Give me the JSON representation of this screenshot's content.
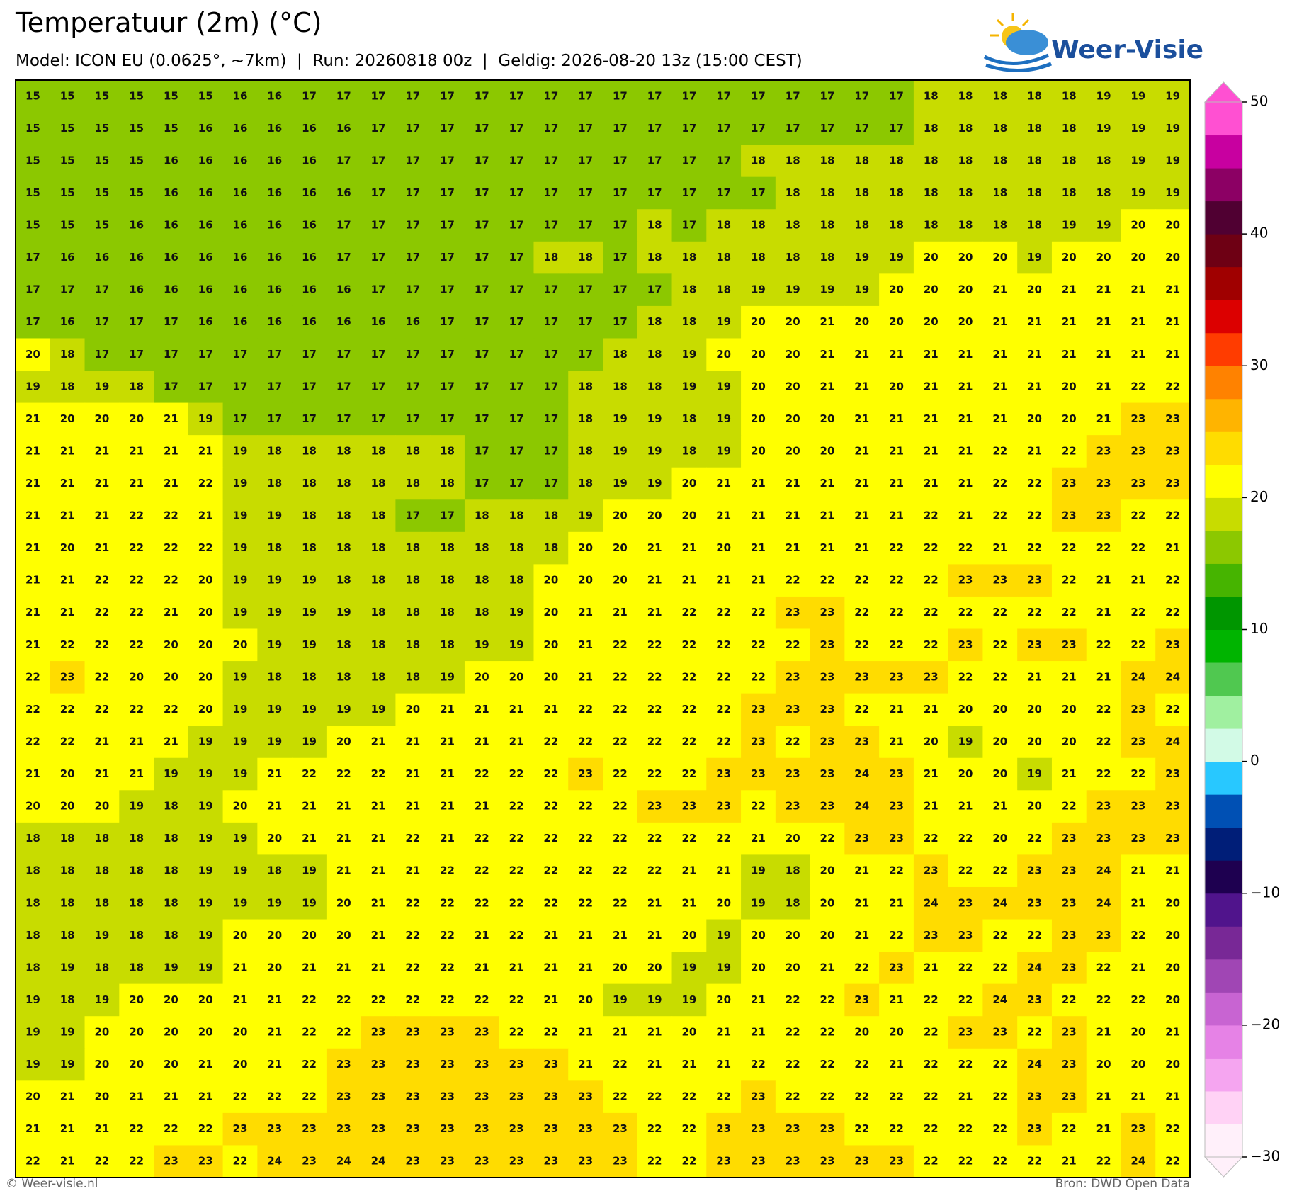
{
  "header": {
    "title": "Temperatuur (2m) (°C)",
    "subtitle": "Model: ICON EU (0.0625°, ~7km)  |  Run: 20260818 00z  |  Geldig: 2026-08-20 13z (15:00 CEST)",
    "logo": "Weer-Visie"
  },
  "map": {
    "values": [
      [
        15,
        15,
        15,
        15,
        15,
        15,
        16,
        16,
        17,
        17,
        17,
        17,
        17,
        17,
        17,
        17,
        17,
        17,
        17,
        17,
        17,
        17,
        17,
        17,
        17,
        17,
        18,
        18,
        18,
        18,
        18,
        19,
        19,
        19
      ],
      [
        15,
        15,
        15,
        15,
        15,
        16,
        16,
        16,
        16,
        16,
        17,
        17,
        17,
        17,
        17,
        17,
        17,
        17,
        17,
        17,
        17,
        17,
        17,
        17,
        17,
        17,
        18,
        18,
        18,
        18,
        18,
        19,
        19,
        19
      ],
      [
        15,
        15,
        15,
        15,
        16,
        16,
        16,
        16,
        16,
        17,
        17,
        17,
        17,
        17,
        17,
        17,
        17,
        17,
        17,
        17,
        17,
        18,
        18,
        18,
        18,
        18,
        18,
        18,
        18,
        18,
        18,
        18,
        19,
        19
      ],
      [
        15,
        15,
        15,
        15,
        16,
        16,
        16,
        16,
        16,
        16,
        17,
        17,
        17,
        17,
        17,
        17,
        17,
        17,
        17,
        17,
        17,
        17,
        18,
        18,
        18,
        18,
        18,
        18,
        18,
        18,
        18,
        18,
        19,
        19
      ],
      [
        15,
        15,
        15,
        16,
        16,
        16,
        16,
        16,
        16,
        17,
        17,
        17,
        17,
        17,
        17,
        17,
        17,
        17,
        18,
        17,
        18,
        18,
        18,
        18,
        18,
        18,
        18,
        18,
        18,
        18,
        19,
        19,
        20,
        20
      ],
      [
        17,
        16,
        16,
        16,
        16,
        16,
        16,
        16,
        16,
        17,
        17,
        17,
        17,
        17,
        17,
        18,
        18,
        17,
        18,
        18,
        18,
        18,
        18,
        18,
        19,
        19,
        20,
        20,
        20,
        19,
        20,
        20,
        20,
        20
      ],
      [
        17,
        17,
        17,
        16,
        16,
        16,
        16,
        16,
        16,
        16,
        17,
        17,
        17,
        17,
        17,
        17,
        17,
        17,
        17,
        18,
        18,
        19,
        19,
        19,
        19,
        20,
        20,
        20,
        21,
        20,
        21,
        21,
        21,
        21
      ],
      [
        17,
        16,
        17,
        17,
        17,
        16,
        16,
        16,
        16,
        16,
        16,
        16,
        17,
        17,
        17,
        17,
        17,
        17,
        18,
        18,
        19,
        20,
        20,
        21,
        20,
        20,
        20,
        20,
        21,
        21,
        21,
        21,
        21,
        21
      ],
      [
        20,
        18,
        17,
        17,
        17,
        17,
        17,
        17,
        17,
        17,
        17,
        17,
        17,
        17,
        17,
        17,
        17,
        18,
        18,
        19,
        20,
        20,
        20,
        21,
        21,
        21,
        21,
        21,
        21,
        21,
        21,
        21,
        21,
        21
      ],
      [
        19,
        18,
        19,
        18,
        17,
        17,
        17,
        17,
        17,
        17,
        17,
        17,
        17,
        17,
        17,
        17,
        18,
        18,
        18,
        19,
        19,
        20,
        20,
        21,
        21,
        20,
        21,
        21,
        21,
        21,
        20,
        21,
        22,
        22
      ],
      [
        21,
        20,
        20,
        20,
        21,
        19,
        17,
        17,
        17,
        17,
        17,
        17,
        17,
        17,
        17,
        17,
        18,
        19,
        19,
        18,
        19,
        20,
        20,
        20,
        21,
        21,
        21,
        21,
        21,
        20,
        20,
        21,
        23,
        23
      ],
      [
        21,
        21,
        21,
        21,
        21,
        21,
        19,
        18,
        18,
        18,
        18,
        18,
        18,
        17,
        17,
        17,
        18,
        19,
        19,
        18,
        19,
        20,
        20,
        20,
        21,
        21,
        21,
        21,
        22,
        21,
        22,
        23,
        23,
        23
      ],
      [
        21,
        21,
        21,
        21,
        21,
        22,
        19,
        18,
        18,
        18,
        18,
        18,
        18,
        17,
        17,
        17,
        18,
        19,
        19,
        20,
        21,
        21,
        21,
        21,
        21,
        21,
        21,
        21,
        22,
        22,
        23,
        23,
        23,
        23
      ],
      [
        21,
        21,
        21,
        22,
        22,
        21,
        19,
        19,
        18,
        18,
        18,
        17,
        17,
        18,
        18,
        18,
        19,
        20,
        20,
        20,
        21,
        21,
        21,
        21,
        21,
        21,
        22,
        21,
        22,
        22,
        23,
        23,
        22,
        22
      ],
      [
        21,
        20,
        21,
        22,
        22,
        22,
        19,
        18,
        18,
        18,
        18,
        18,
        18,
        18,
        18,
        18,
        20,
        20,
        21,
        21,
        20,
        21,
        21,
        21,
        21,
        22,
        22,
        22,
        21,
        22,
        22,
        22,
        22,
        21
      ],
      [
        21,
        21,
        22,
        22,
        22,
        20,
        19,
        19,
        19,
        18,
        18,
        18,
        18,
        18,
        18,
        20,
        20,
        20,
        21,
        21,
        21,
        21,
        22,
        22,
        22,
        22,
        22,
        23,
        23,
        23,
        22,
        21,
        21,
        22
      ],
      [
        21,
        21,
        22,
        22,
        21,
        20,
        19,
        19,
        19,
        19,
        18,
        18,
        18,
        18,
        19,
        20,
        21,
        21,
        21,
        22,
        22,
        22,
        23,
        23,
        22,
        22,
        22,
        22,
        22,
        22,
        22,
        21,
        22,
        22
      ],
      [
        21,
        22,
        22,
        22,
        20,
        20,
        20,
        19,
        19,
        18,
        18,
        18,
        18,
        19,
        19,
        20,
        21,
        22,
        22,
        22,
        22,
        22,
        22,
        23,
        22,
        22,
        22,
        23,
        22,
        23,
        23,
        22,
        22,
        23
      ],
      [
        22,
        23,
        22,
        20,
        20,
        20,
        19,
        18,
        18,
        18,
        18,
        18,
        19,
        20,
        20,
        20,
        21,
        22,
        22,
        22,
        22,
        22,
        23,
        23,
        23,
        23,
        23,
        22,
        22,
        21,
        21,
        21,
        24,
        24
      ],
      [
        22,
        22,
        22,
        22,
        22,
        20,
        19,
        19,
        19,
        19,
        19,
        20,
        21,
        21,
        21,
        21,
        22,
        22,
        22,
        22,
        22,
        23,
        23,
        23,
        22,
        21,
        21,
        20,
        20,
        20,
        20,
        22,
        23,
        22
      ],
      [
        22,
        22,
        21,
        21,
        21,
        19,
        19,
        19,
        19,
        20,
        21,
        21,
        21,
        21,
        21,
        22,
        22,
        22,
        22,
        22,
        22,
        23,
        22,
        23,
        23,
        21,
        20,
        19,
        20,
        20,
        20,
        22,
        23,
        24
      ],
      [
        21,
        20,
        21,
        21,
        19,
        19,
        19,
        21,
        22,
        22,
        22,
        21,
        21,
        22,
        22,
        22,
        23,
        22,
        22,
        22,
        23,
        23,
        23,
        23,
        24,
        23,
        21,
        20,
        20,
        19,
        21,
        22,
        22,
        23
      ],
      [
        20,
        20,
        20,
        19,
        18,
        19,
        20,
        21,
        21,
        21,
        21,
        21,
        21,
        21,
        22,
        22,
        22,
        22,
        23,
        23,
        23,
        22,
        23,
        23,
        24,
        23,
        21,
        21,
        21,
        20,
        22,
        23,
        23,
        23
      ],
      [
        18,
        18,
        18,
        18,
        18,
        19,
        19,
        20,
        21,
        21,
        21,
        22,
        21,
        22,
        22,
        22,
        22,
        22,
        22,
        22,
        22,
        21,
        20,
        22,
        23,
        23,
        22,
        22,
        20,
        22,
        23,
        23,
        23,
        23
      ],
      [
        18,
        18,
        18,
        18,
        18,
        19,
        19,
        18,
        19,
        21,
        21,
        21,
        22,
        22,
        22,
        22,
        22,
        22,
        22,
        21,
        21,
        19,
        18,
        20,
        21,
        22,
        23,
        22,
        22,
        23,
        23,
        24,
        21,
        21
      ],
      [
        18,
        18,
        18,
        18,
        18,
        19,
        19,
        19,
        19,
        20,
        21,
        22,
        22,
        22,
        22,
        22,
        22,
        22,
        21,
        21,
        20,
        19,
        18,
        20,
        21,
        21,
        24,
        23,
        24,
        23,
        23,
        24,
        21,
        20
      ],
      [
        18,
        18,
        19,
        18,
        18,
        19,
        20,
        20,
        20,
        20,
        21,
        22,
        22,
        21,
        22,
        21,
        21,
        21,
        21,
        20,
        19,
        20,
        20,
        20,
        21,
        22,
        23,
        23,
        22,
        22,
        23,
        23,
        22,
        20
      ],
      [
        18,
        19,
        18,
        18,
        19,
        19,
        21,
        20,
        21,
        21,
        21,
        22,
        22,
        21,
        21,
        21,
        21,
        20,
        20,
        19,
        19,
        20,
        20,
        21,
        22,
        23,
        21,
        22,
        22,
        24,
        23,
        22,
        21,
        20
      ],
      [
        19,
        18,
        19,
        20,
        20,
        20,
        21,
        21,
        22,
        22,
        22,
        22,
        22,
        22,
        22,
        21,
        20,
        19,
        19,
        19,
        20,
        21,
        22,
        22,
        23,
        21,
        22,
        22,
        24,
        23,
        22,
        22,
        22,
        20
      ],
      [
        19,
        19,
        20,
        20,
        20,
        20,
        20,
        21,
        22,
        22,
        23,
        23,
        23,
        23,
        22,
        22,
        21,
        21,
        21,
        20,
        21,
        21,
        22,
        22,
        20,
        20,
        22,
        23,
        23,
        22,
        23,
        21,
        20,
        21
      ],
      [
        19,
        19,
        20,
        20,
        20,
        21,
        20,
        21,
        22,
        23,
        23,
        23,
        23,
        23,
        23,
        23,
        21,
        22,
        21,
        21,
        21,
        22,
        22,
        22,
        22,
        21,
        22,
        22,
        22,
        24,
        23,
        20,
        20,
        20
      ],
      [
        20,
        21,
        20,
        21,
        21,
        21,
        22,
        22,
        22,
        23,
        23,
        23,
        23,
        23,
        23,
        23,
        23,
        22,
        22,
        22,
        22,
        23,
        22,
        22,
        22,
        22,
        22,
        21,
        22,
        23,
        23,
        21,
        21,
        21
      ],
      [
        21,
        21,
        21,
        22,
        22,
        22,
        23,
        23,
        23,
        23,
        23,
        23,
        23,
        23,
        23,
        23,
        23,
        23,
        22,
        22,
        23,
        23,
        23,
        23,
        22,
        22,
        22,
        22,
        22,
        23,
        22,
        21,
        23,
        22
      ],
      [
        22,
        21,
        22,
        22,
        23,
        23,
        22,
        24,
        23,
        24,
        24,
        23,
        23,
        23,
        23,
        23,
        23,
        23,
        22,
        22,
        23,
        23,
        23,
        23,
        23,
        23,
        22,
        22,
        22,
        22,
        21,
        22,
        24,
        22
      ]
    ]
  },
  "colorbar": {
    "lim": [
      -30,
      50
    ],
    "ticks": [
      {
        "value": -30,
        "label": "−30"
      },
      {
        "value": -20,
        "label": "−20"
      },
      {
        "value": -10,
        "label": "−10"
      },
      0,
      10,
      20,
      30,
      40,
      50
    ],
    "colors": [
      "#fff0fa",
      "#ffd2f5",
      "#f5a5f0",
      "#e682e6",
      "#c864d2",
      "#a046b4",
      "#782896",
      "#50148c",
      "#1e0050",
      "#001e78",
      "#0050b4",
      "#28c8ff",
      "#d2fae6",
      "#a0f0a0",
      "#50c850",
      "#00b400",
      "#009600",
      "#46b400",
      "#8cc800",
      "#c8dc00",
      "#ffff00",
      "#ffdc00",
      "#ffb400",
      "#ff8200",
      "#ff3c00",
      "#dc0000",
      "#a00000",
      "#6e0014",
      "#500032",
      "#8c0064",
      "#c800a0",
      "#ff50d2"
    ]
  },
  "footer": {
    "left": "© Weer-visie.nl",
    "right": "Bron: DWD Open Data"
  }
}
